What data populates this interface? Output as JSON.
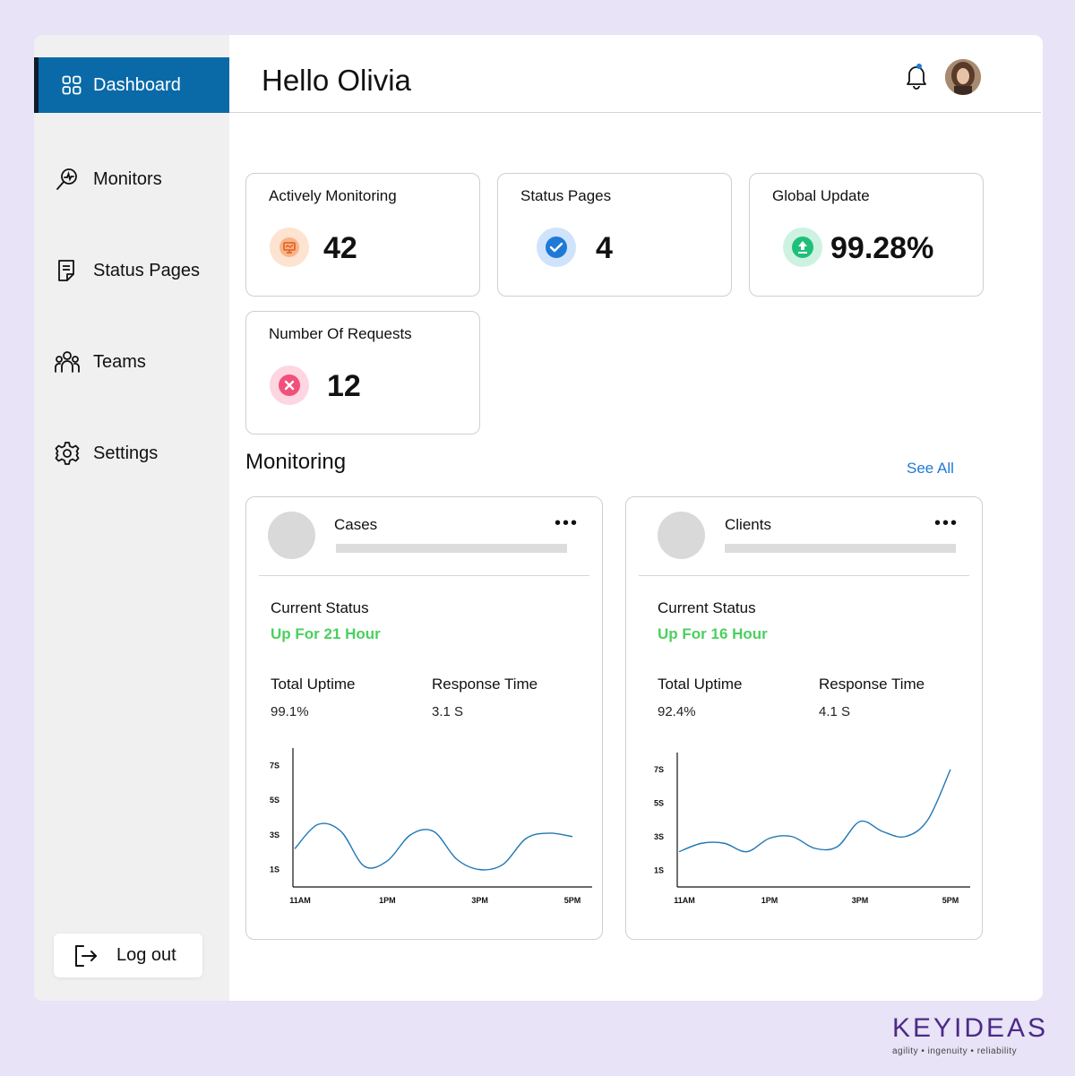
{
  "sidebar": {
    "items": [
      {
        "label": "Dashboard",
        "icon": "grid-icon"
      },
      {
        "label": "Monitors",
        "icon": "monitor-search-icon"
      },
      {
        "label": "Status Pages",
        "icon": "document-icon"
      },
      {
        "label": "Teams",
        "icon": "users-icon"
      },
      {
        "label": "Settings",
        "icon": "gear-icon"
      }
    ],
    "logout_label": "Log out"
  },
  "header": {
    "greeting": "Hello Olivia"
  },
  "stats": [
    {
      "title": "Actively Monitoring",
      "value": "42",
      "icon": "monitor-icon",
      "color": "#f58a3c"
    },
    {
      "title": "Status Pages",
      "value": "4",
      "icon": "check-icon",
      "color": "#1e7ad6"
    },
    {
      "title": "Global Update",
      "value": "99.28%",
      "icon": "upload-icon",
      "color": "#1fbf7a"
    },
    {
      "title": "Number Of Requests",
      "value": "12",
      "icon": "x-icon",
      "color": "#f0507a"
    }
  ],
  "monitoring": {
    "title": "Monitoring",
    "see_all": "See All",
    "cards": [
      {
        "name": "Cases",
        "current_status_label": "Current Status",
        "status": "Up For 21 Hour",
        "uptime_label": "Total Uptime",
        "uptime": "99.1%",
        "response_label": "Response Time",
        "response": "3.1 S"
      },
      {
        "name": "Clients",
        "current_status_label": "Current Status",
        "status": "Up For 16 Hour",
        "uptime_label": "Total Uptime",
        "uptime": "92.4%",
        "response_label": "Response Time",
        "response": "4.1 S"
      }
    ]
  },
  "chart_data": [
    {
      "type": "line",
      "y_ticks": [
        "7S",
        "5S",
        "3S",
        "1S"
      ],
      "x_ticks": [
        "11AM",
        "1PM",
        "3PM",
        "5PM"
      ],
      "ylim": [
        0,
        8
      ],
      "x": [
        0,
        0.5,
        1,
        1.5,
        2,
        2.5,
        3,
        3.5,
        4,
        4.5,
        5,
        5.5,
        6
      ],
      "series": [
        {
          "values": [
            2.2,
            3.6,
            3.2,
            1.2,
            1.5,
            3.0,
            3.2,
            1.6,
            1.0,
            1.3,
            2.8,
            3.1,
            2.9
          ]
        }
      ],
      "color": "#1f77b4"
    },
    {
      "type": "line",
      "y_ticks": [
        "7S",
        "5S",
        "3S",
        "1S"
      ],
      "x_ticks": [
        "11AM",
        "1PM",
        "3PM",
        "5PM"
      ],
      "ylim": [
        0,
        8
      ],
      "x": [
        0,
        0.5,
        1,
        1.5,
        2,
        2.5,
        3,
        3.5,
        4,
        4.5,
        5,
        5.5,
        6
      ],
      "series": [
        {
          "values": [
            2.1,
            2.6,
            2.6,
            2.1,
            2.9,
            3.0,
            2.3,
            2.4,
            3.9,
            3.3,
            3.0,
            4.0,
            7.0
          ]
        }
      ],
      "color": "#1f77b4"
    }
  ],
  "brand": {
    "name": "KEYIDEAS",
    "tagline": "agility • ingenuity • reliability"
  }
}
